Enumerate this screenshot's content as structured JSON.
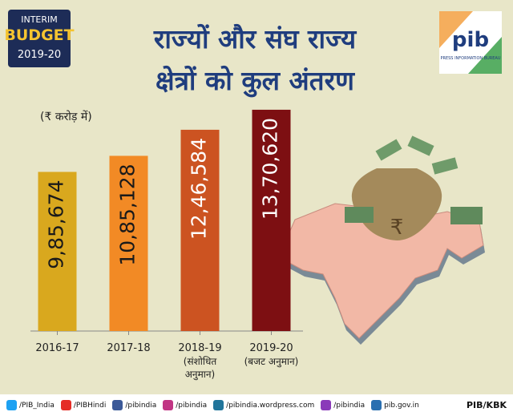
{
  "badge": {
    "lines": [
      "INTERIM",
      "BUDGET",
      "2019-20"
    ]
  },
  "logo": {
    "mark": "pib",
    "caption": "PRESS INFORMATION BUREAU"
  },
  "chart_data": {
    "type": "bar",
    "title": [
      "राज्यों और संघ राज्य",
      "क्षेत्रों को कुल अंतरण"
    ],
    "unit_label": "(₹ करोड़ में)",
    "categories": [
      "2016-17",
      "2017-18",
      "2018-19",
      "2019-20"
    ],
    "category_notes": [
      null,
      null,
      "(संशोधित अनुमान)",
      "(बजट अनुमान)"
    ],
    "values": [
      985674,
      1085128,
      1246584,
      1370620
    ],
    "value_labels": [
      "9,85,674",
      "10,85,128",
      "12,46,584",
      "13,70,620"
    ],
    "colors": [
      "#d9a81e",
      "#f28a25",
      "#cc5321",
      "#7d0f12"
    ],
    "ylim": [
      0,
      1400000
    ]
  },
  "footer": {
    "handles": [
      "/PIB_India",
      "/PIBHindi",
      "/pibindia",
      "/pibindia",
      "/pibindia.wordpress.com",
      "/pibindia",
      "pib.gov.in"
    ],
    "credit": "PIB/KBK"
  }
}
